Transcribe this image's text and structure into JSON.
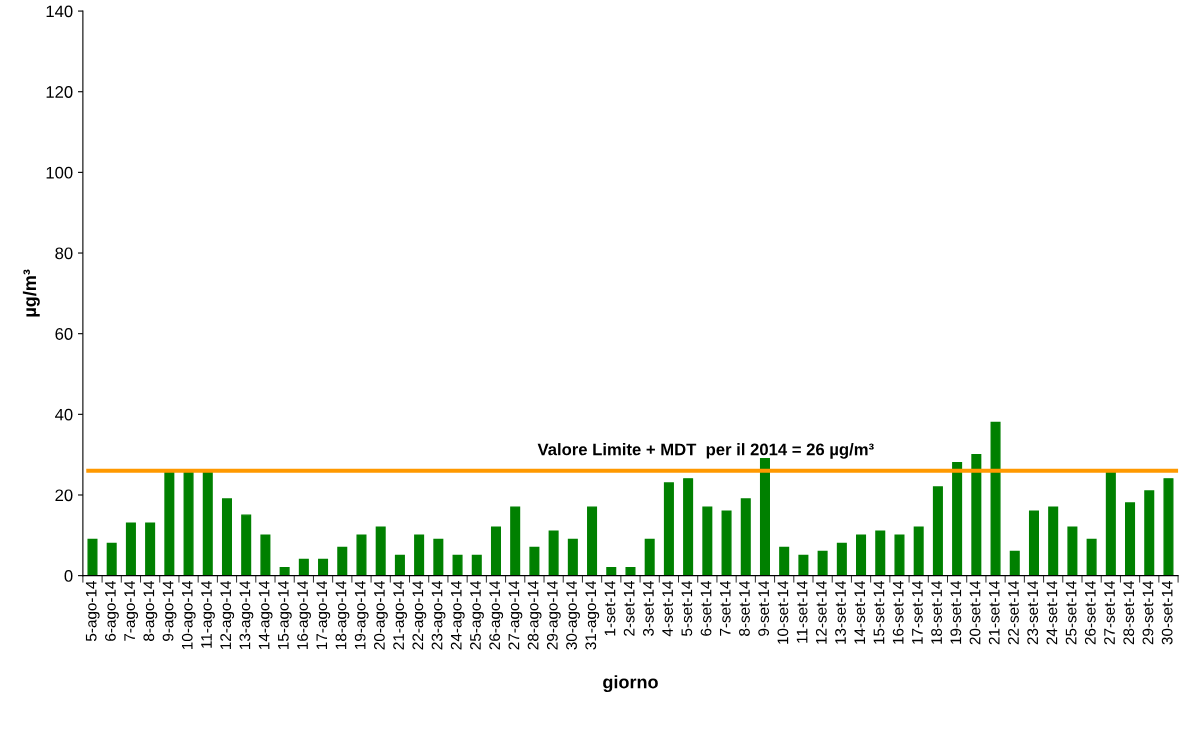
{
  "chart_data": {
    "type": "bar",
    "xlabel": "giorno",
    "ylabel": "µg/m³",
    "categories": [
      "5-ago-14",
      "6-ago-14",
      "7-ago-14",
      "8-ago-14",
      "9-ago-14",
      "10-ago-14",
      "11-ago-14",
      "12-ago-14",
      "13-ago-14",
      "14-ago-14",
      "15-ago-14",
      "16-ago-14",
      "17-ago-14",
      "18-ago-14",
      "19-ago-14",
      "20-ago-14",
      "21-ago-14",
      "22-ago-14",
      "23-ago-14",
      "24-ago-14",
      "25-ago-14",
      "26-ago-14",
      "27-ago-14",
      "28-ago-14",
      "29-ago-14",
      "30-ago-14",
      "31-ago-14",
      "1-set-14",
      "2-set-14",
      "3-set-14",
      "4-set-14",
      "5-set-14",
      "6-set-14",
      "7-set-14",
      "8-set-14",
      "9-set-14",
      "10-set-14",
      "11-set-14",
      "12-set-14",
      "13-set-14",
      "14-set-14",
      "15-set-14",
      "16-set-14",
      "17-set-14",
      "18-set-14",
      "19-set-14",
      "20-set-14",
      "21-set-14",
      "22-set-14",
      "23-set-14",
      "24-set-14",
      "25-set-14",
      "26-set-14",
      "27-set-14",
      "28-set-14",
      "29-set-14",
      "30-set-14"
    ],
    "values": [
      9,
      8,
      13,
      13,
      26,
      26,
      26,
      19,
      15,
      10,
      2,
      4,
      4,
      7,
      10,
      12,
      5,
      10,
      9,
      5,
      5,
      12,
      17,
      7,
      11,
      9,
      17,
      2,
      2,
      9,
      23,
      24,
      17,
      16,
      19,
      29,
      7,
      5,
      6,
      8,
      10,
      11,
      10,
      12,
      22,
      28,
      30,
      38,
      6,
      16,
      17,
      12,
      9,
      26,
      18,
      21,
      24
    ],
    "color": "#008000",
    "ylim": [
      0,
      140
    ],
    "yticks": [
      0,
      20,
      40,
      60,
      80,
      100,
      120,
      140
    ],
    "grid": false,
    "ref_lines": [
      {
        "axis": "y",
        "value": 26,
        "label": "Valore Limite + MDT  per il 2014 = 26 µg/m³",
        "color": "#ff9900"
      }
    ]
  }
}
